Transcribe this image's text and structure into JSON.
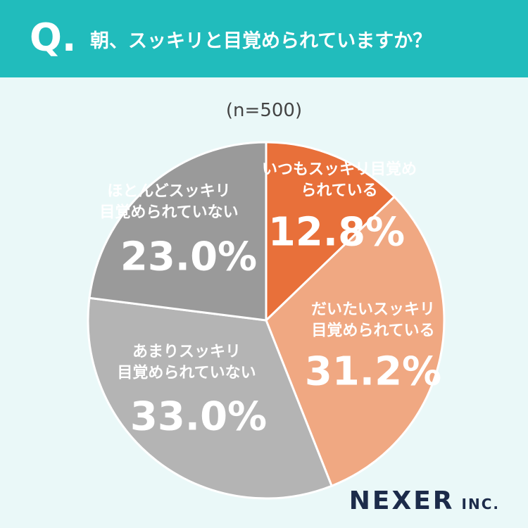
{
  "header": {
    "q_mark": "Q.",
    "title": "朝、スッキリと目覚められていますか？"
  },
  "chart_data": {
    "type": "pie",
    "subtitle": "(n=500)",
    "categories": [
      "いつもスッキリ目覚め\nられている",
      "だいたいスッキリ\n目覚められている",
      "あまりスッキリ\n目覚められていない",
      "ほとんどスッキリ\n目覚められていない"
    ],
    "values": [
      12.8,
      31.2,
      33.0,
      23.0
    ],
    "value_labels": [
      "12.8%",
      "31.2%",
      "33.0%",
      "23.0%"
    ],
    "colors": [
      "#e8703a",
      "#f0a882",
      "#b4b4b4",
      "#9a9a9a"
    ]
  },
  "footer": {
    "logo": "NEXER",
    "logo_suffix": "INC."
  }
}
